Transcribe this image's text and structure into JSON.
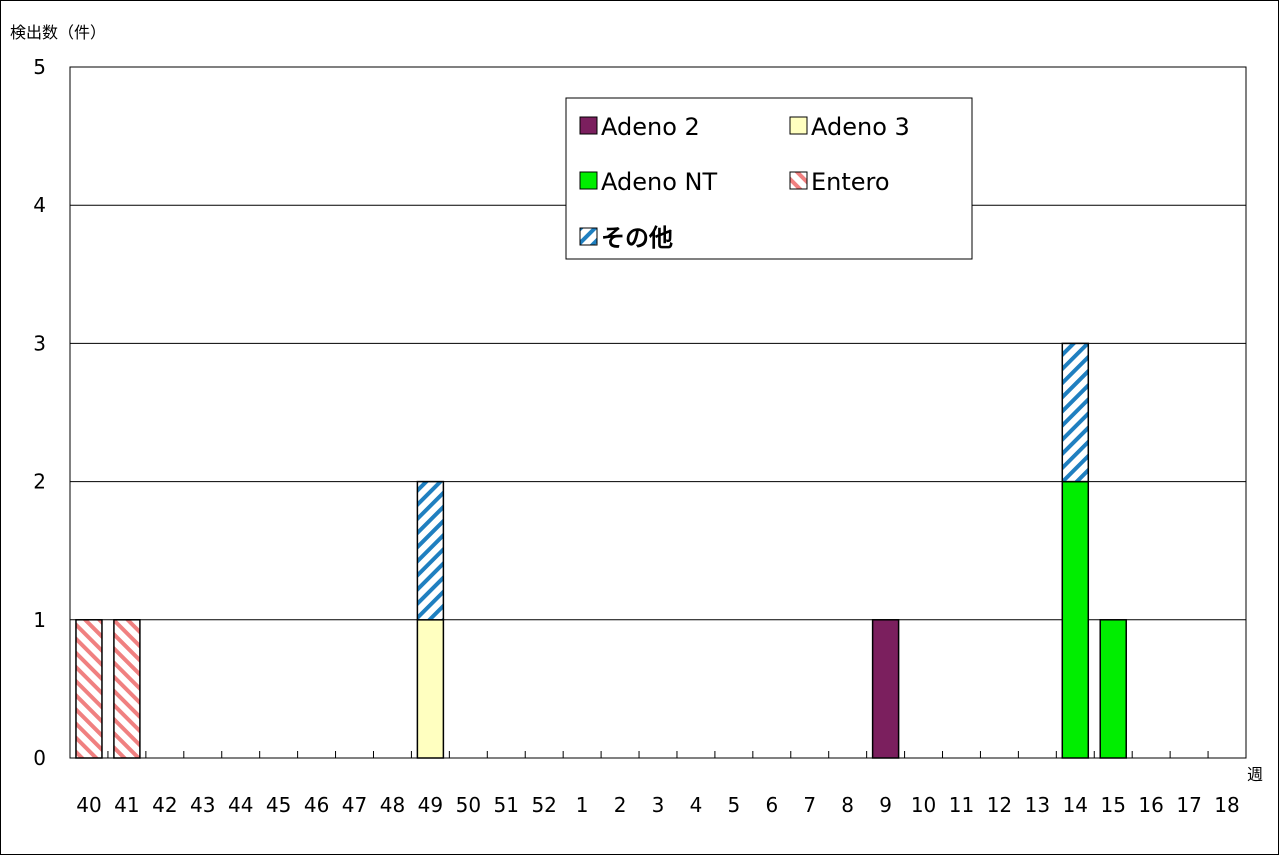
{
  "chart_data": {
    "type": "bar",
    "stacked": true,
    "title": "",
    "ylabel": "検出数（件）",
    "xlabel": "週",
    "ylim": [
      0,
      5
    ],
    "yticks": [
      0,
      1,
      2,
      3,
      4,
      5
    ],
    "grid": true,
    "legend_position": "top-center",
    "categories": [
      "40",
      "41",
      "42",
      "43",
      "44",
      "45",
      "46",
      "47",
      "48",
      "49",
      "50",
      "51",
      "52",
      "1",
      "2",
      "3",
      "4",
      "5",
      "6",
      "7",
      "8",
      "9",
      "10",
      "11",
      "12",
      "13",
      "14",
      "15",
      "16",
      "17",
      "18"
    ],
    "series": [
      {
        "name": "Adeno 2",
        "color": "#7b1f5e",
        "pattern": "solid",
        "values": [
          0,
          0,
          0,
          0,
          0,
          0,
          0,
          0,
          0,
          0,
          0,
          0,
          0,
          0,
          0,
          0,
          0,
          0,
          0,
          0,
          0,
          1,
          0,
          0,
          0,
          0,
          0,
          0,
          0,
          0,
          0
        ]
      },
      {
        "name": "Adeno 3",
        "color": "#ffffc0",
        "pattern": "solid",
        "values": [
          0,
          0,
          0,
          0,
          0,
          0,
          0,
          0,
          0,
          1,
          0,
          0,
          0,
          0,
          0,
          0,
          0,
          0,
          0,
          0,
          0,
          0,
          0,
          0,
          0,
          0,
          0,
          0,
          0,
          0,
          0
        ]
      },
      {
        "name": "Adeno NT",
        "color": "#00ee00",
        "pattern": "solid",
        "values": [
          0,
          0,
          0,
          0,
          0,
          0,
          0,
          0,
          0,
          0,
          0,
          0,
          0,
          0,
          0,
          0,
          0,
          0,
          0,
          0,
          0,
          0,
          0,
          0,
          0,
          0,
          2,
          1,
          0,
          0,
          0
        ]
      },
      {
        "name": "Entero",
        "color": "#f08080",
        "pattern": "hatch-down",
        "values": [
          1,
          1,
          0,
          0,
          0,
          0,
          0,
          0,
          0,
          0,
          0,
          0,
          0,
          0,
          0,
          0,
          0,
          0,
          0,
          0,
          0,
          0,
          0,
          0,
          0,
          0,
          0,
          0,
          0,
          0,
          0
        ]
      },
      {
        "name": "その他",
        "color": "#1f7fc0",
        "pattern": "hatch-up",
        "values": [
          0,
          0,
          0,
          0,
          0,
          0,
          0,
          0,
          0,
          1,
          0,
          0,
          0,
          0,
          0,
          0,
          0,
          0,
          0,
          0,
          0,
          0,
          0,
          0,
          0,
          0,
          1,
          0,
          0,
          0,
          0
        ]
      }
    ]
  }
}
